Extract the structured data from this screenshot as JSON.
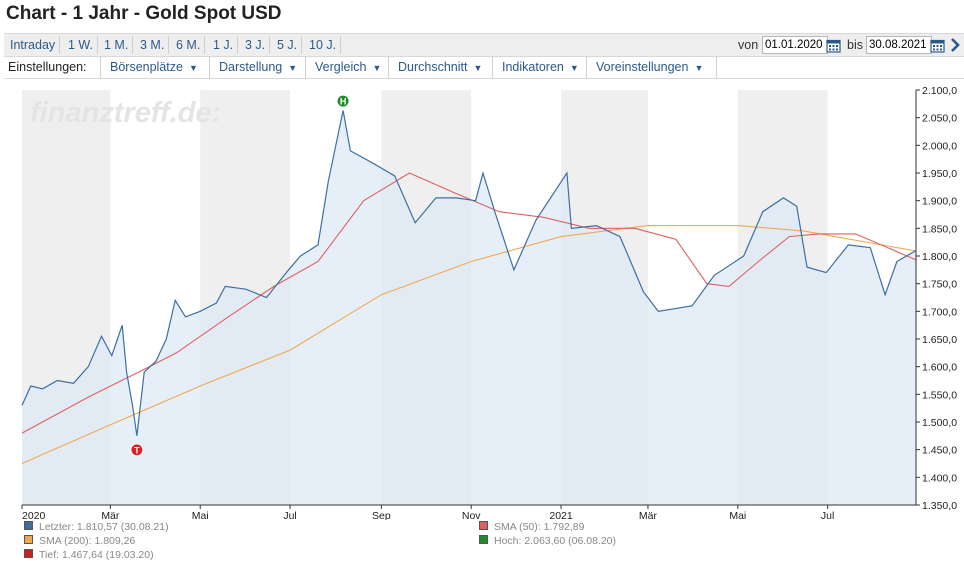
{
  "header": {
    "title": "Chart - 1 Jahr - Gold Spot USD"
  },
  "ranges": [
    "Intraday",
    "1 W.",
    "1 M.",
    "3 M.",
    "6 M.",
    "1 J.",
    "3 J.",
    "5 J.",
    "10 J."
  ],
  "dates": {
    "from_label": "von",
    "from_value": "01.01.2020",
    "to_label": "bis",
    "to_value": "30.08.2021"
  },
  "settings": {
    "label": "Einstellungen:",
    "items": [
      "Börsenplätze",
      "Darstellung",
      "Vergleich",
      "Durchschnitt",
      "Indikatoren",
      "Voreinstellungen"
    ]
  },
  "watermark": "finanztreff.de:",
  "colors": {
    "price": "#3d6fa3",
    "price_fill": "#dde9f5",
    "sma50": "#e06060",
    "sma200": "#f0a850",
    "high": "#1e8c2a",
    "low": "#e02020",
    "band": "#efefef"
  },
  "legend": [
    {
      "text": "Letzter: 1.810,57 (30.08.21)",
      "color": "#3d6fa3"
    },
    {
      "text": "SMA (50): 1.792,89",
      "color": "#e06060"
    },
    {
      "text": "SMA (200): 1.809,26",
      "color": "#f0a850"
    },
    {
      "text": "Hoch: 2.063,60 (06.08.20)",
      "color": "#1e8c2a"
    },
    {
      "text": "Tief: 1.467,64 (19.03.20)",
      "color": "#cc1e1e"
    }
  ],
  "chart_data": {
    "type": "area",
    "x_tick_labels": [
      "2020",
      "Mär",
      "Mai",
      "Jul",
      "Sep",
      "Nov",
      "2021",
      "Mär",
      "Mai",
      "Jul"
    ],
    "y_tick_labels": [
      "2.100,0",
      "2.050,0",
      "2.000,0",
      "1.950,0",
      "1.900,0",
      "1.850,0",
      "1.800,0",
      "1.750,0",
      "1.700,0",
      "1.650,0",
      "1.600,0",
      "1.550,0",
      "1.500,0",
      "1.450,0",
      "1.400,0",
      "1.350,0"
    ],
    "ylim": [
      1350,
      2100
    ],
    "xlim": [
      "2020-01-01",
      "2021-08-30"
    ],
    "high_marker": {
      "label": "H",
      "date": "2020-08-06",
      "value": 2063.6
    },
    "low_marker": {
      "label": "T",
      "date": "2020-03-19",
      "value": 1467.64
    },
    "series": [
      {
        "name": "Letzter",
        "x": [
          "2020-01-01",
          "2020-01-07",
          "2020-01-15",
          "2020-01-25",
          "2020-02-05",
          "2020-02-15",
          "2020-02-24",
          "2020-03-02",
          "2020-03-09",
          "2020-03-12",
          "2020-03-16",
          "2020-03-19",
          "2020-03-24",
          "2020-04-01",
          "2020-04-08",
          "2020-04-14",
          "2020-04-21",
          "2020-05-01",
          "2020-05-12",
          "2020-05-18",
          "2020-06-01",
          "2020-06-15",
          "2020-06-30",
          "2020-07-08",
          "2020-07-20",
          "2020-07-27",
          "2020-08-06",
          "2020-08-11",
          "2020-08-18",
          "2020-08-28",
          "2020-09-10",
          "2020-09-24",
          "2020-10-08",
          "2020-10-22",
          "2020-11-04",
          "2020-11-09",
          "2020-11-17",
          "2020-11-30",
          "2020-12-15",
          "2021-01-05",
          "2021-01-08",
          "2021-01-25",
          "2021-02-10",
          "2021-02-26",
          "2021-03-08",
          "2021-03-31",
          "2021-04-15",
          "2021-05-05",
          "2021-05-18",
          "2021-06-01",
          "2021-06-10",
          "2021-06-17",
          "2021-06-30",
          "2021-07-15",
          "2021-07-30",
          "2021-08-09",
          "2021-08-17",
          "2021-08-30"
        ],
        "values": [
          1530,
          1565,
          1560,
          1575,
          1570,
          1600,
          1655,
          1620,
          1675,
          1590,
          1530,
          1475,
          1590,
          1610,
          1650,
          1720,
          1690,
          1700,
          1715,
          1745,
          1740,
          1725,
          1775,
          1800,
          1820,
          1935,
          2063,
          1990,
          1980,
          1965,
          1945,
          1860,
          1905,
          1905,
          1900,
          1950,
          1880,
          1775,
          1865,
          1950,
          1850,
          1855,
          1835,
          1735,
          1700,
          1710,
          1765,
          1800,
          1880,
          1905,
          1890,
          1780,
          1770,
          1820,
          1815,
          1730,
          1790,
          1810
        ]
      },
      {
        "name": "SMA (50)",
        "x": [
          "2020-01-01",
          "2020-02-15",
          "2020-03-20",
          "2020-04-15",
          "2020-05-20",
          "2020-06-20",
          "2020-07-20",
          "2020-08-20",
          "2020-09-20",
          "2020-10-20",
          "2020-11-20",
          "2020-12-20",
          "2021-01-20",
          "2021-02-20",
          "2021-03-20",
          "2021-04-10",
          "2021-04-25",
          "2021-05-15",
          "2021-06-05",
          "2021-06-25",
          "2021-07-20",
          "2021-08-30"
        ],
        "values": [
          1480,
          1545,
          1590,
          1625,
          1690,
          1745,
          1790,
          1900,
          1950,
          1915,
          1880,
          1870,
          1850,
          1850,
          1830,
          1750,
          1745,
          1790,
          1835,
          1840,
          1840,
          1793
        ]
      },
      {
        "name": "SMA (200)",
        "x": [
          "2020-01-01",
          "2020-03-01",
          "2020-05-01",
          "2020-07-01",
          "2020-09-01",
          "2020-11-01",
          "2021-01-01",
          "2021-03-01",
          "2021-05-01",
          "2021-06-15",
          "2021-08-30"
        ],
        "values": [
          1425,
          1495,
          1565,
          1630,
          1730,
          1790,
          1835,
          1855,
          1855,
          1845,
          1809
        ]
      }
    ]
  }
}
